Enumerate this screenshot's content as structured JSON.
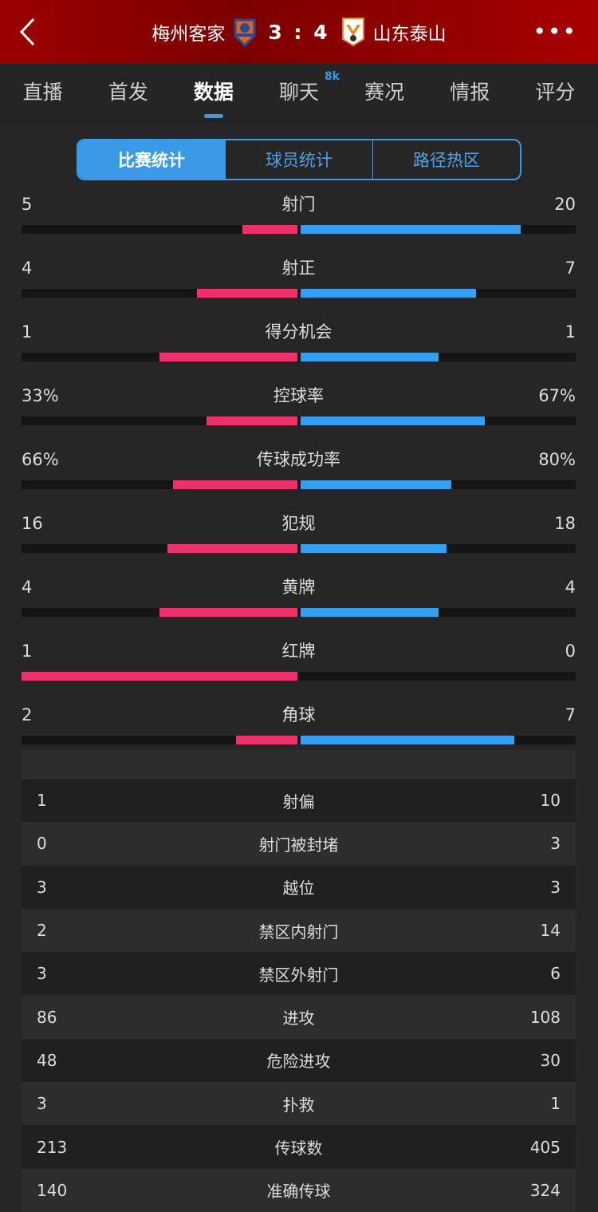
{
  "header": {
    "home": "梅州客家",
    "away": "山东泰山",
    "score": "3 : 4",
    "back_icon": "chevron-left-icon",
    "more_icon": "more-dots-icon"
  },
  "tabs": [
    {
      "label": "直播"
    },
    {
      "label": "首发"
    },
    {
      "label": "数据",
      "active": true
    },
    {
      "label": "聊天",
      "badge": "8k"
    },
    {
      "label": "赛况"
    },
    {
      "label": "情报"
    },
    {
      "label": "评分"
    }
  ],
  "segments": [
    {
      "label": "比赛统计",
      "active": true
    },
    {
      "label": "球员统计"
    },
    {
      "label": "路径热区"
    }
  ],
  "colors": {
    "home": "#f0306d",
    "away": "#35a0f2",
    "header": "#9c0000"
  },
  "bar_stats": [
    {
      "name": "射门",
      "home": "5",
      "away": "20",
      "hv": 5,
      "av": 20
    },
    {
      "name": "射正",
      "home": "4",
      "away": "7",
      "hv": 4,
      "av": 7
    },
    {
      "name": "得分机会",
      "home": "1",
      "away": "1",
      "hv": 1,
      "av": 1
    },
    {
      "name": "控球率",
      "home": "33%",
      "away": "67%",
      "hv": 33,
      "av": 67
    },
    {
      "name": "传球成功率",
      "home": "66%",
      "away": "80%",
      "hv": 66,
      "av": 80
    },
    {
      "name": "犯规",
      "home": "16",
      "away": "18",
      "hv": 16,
      "av": 18
    },
    {
      "name": "黄牌",
      "home": "4",
      "away": "4",
      "hv": 4,
      "av": 4
    },
    {
      "name": "红牌",
      "home": "1",
      "away": "0",
      "hv": 1,
      "av": 0
    },
    {
      "name": "角球",
      "home": "2",
      "away": "7",
      "hv": 2,
      "av": 7
    }
  ],
  "table_stats": [
    {
      "name": "射偏",
      "home": "1",
      "away": "10"
    },
    {
      "name": "射门被封堵",
      "home": "0",
      "away": "3"
    },
    {
      "name": "越位",
      "home": "3",
      "away": "3"
    },
    {
      "name": "禁区内射门",
      "home": "2",
      "away": "14"
    },
    {
      "name": "禁区外射门",
      "home": "3",
      "away": "6"
    },
    {
      "name": "进攻",
      "home": "86",
      "away": "108"
    },
    {
      "name": "危险进攻",
      "home": "48",
      "away": "30"
    },
    {
      "name": "扑救",
      "home": "3",
      "away": "1"
    },
    {
      "name": "传球数",
      "home": "213",
      "away": "405"
    },
    {
      "name": "准确传球",
      "home": "140",
      "away": "324"
    }
  ]
}
